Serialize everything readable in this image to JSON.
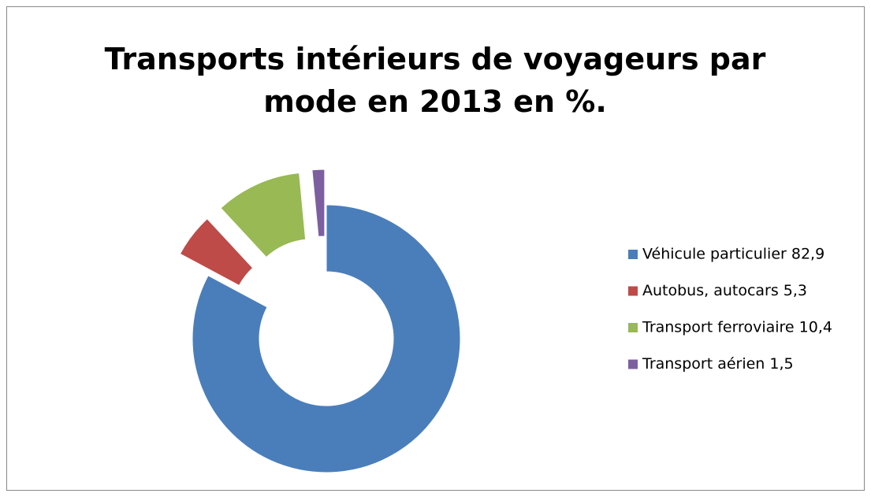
{
  "chart_data": {
    "type": "donut",
    "title": [
      "Transports intérieurs de voyageurs par",
      "mode en 2013 en %."
    ],
    "categories": [
      "Véhicule particulier 82,9",
      "Autobus, autocars 5,3",
      "Transport ferroviaire 10,4",
      "Transport aérien 1,5"
    ],
    "values": [
      82.9,
      5.3,
      10.4,
      1.5
    ],
    "colors": [
      "#4a7ebb",
      "#be4b48",
      "#98b954",
      "#7d5fa0"
    ],
    "exploded": [
      false,
      true,
      true,
      true
    ],
    "legend": "right"
  }
}
